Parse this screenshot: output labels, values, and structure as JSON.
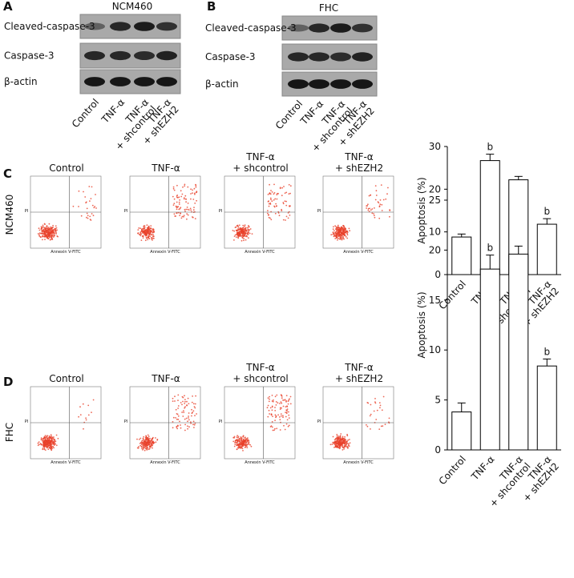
{
  "figure": {
    "blots": [
      {
        "panel": "A",
        "title": "NCM460",
        "bands": [
          "Cleaved-caspase-3",
          "Caspase-3",
          "β-actin"
        ],
        "lanes": [
          [
            "Control"
          ],
          [
            "TNF-α"
          ],
          [
            "TNF-α",
            "+ shcontrol"
          ],
          [
            "TNF-α",
            "+ shEZH2"
          ]
        ]
      },
      {
        "panel": "B",
        "title": "FHC",
        "bands": [
          "Cleaved-caspase-3",
          "Caspase-3",
          "β-actin"
        ],
        "lanes": [
          [
            "Control"
          ],
          [
            "TNF-α"
          ],
          [
            "TNF-α",
            "+ shcontrol"
          ],
          [
            "TNF-α",
            "+ shEZH2"
          ]
        ]
      }
    ],
    "flow": [
      {
        "panel": "C",
        "row_label": "NCM460",
        "plots": [
          [
            "Control"
          ],
          [
            "TNF-α"
          ],
          [
            "TNF-α",
            "+ shcontrol"
          ],
          [
            "TNF-α",
            "+ shEZH2"
          ]
        ]
      },
      {
        "panel": "D",
        "row_label": "FHC",
        "plots": [
          [
            "Control"
          ],
          [
            "TNF-α"
          ],
          [
            "TNF-α",
            "+ shcontrol"
          ],
          [
            "TNF-α",
            "+ shEZH2"
          ]
        ]
      }
    ],
    "flow_x_label": "Annexin V-FITC",
    "flow_y_label": "PI"
  },
  "chart_data": [
    {
      "type": "bar",
      "y_label": "Apoptosis (%)",
      "categories": [
        [
          "Control"
        ],
        [
          "TNF-α"
        ],
        [
          "TNF-α",
          "+ shcontrol"
        ],
        [
          "TNF-α",
          "+ shEZH2"
        ]
      ],
      "values": [
        8.8,
        26.7,
        22.2,
        11.8
      ],
      "errors": [
        0.7,
        1.5,
        0.8,
        1.3
      ],
      "annotations": [
        {
          "index": 1,
          "text": "b"
        },
        {
          "index": 3,
          "text": "b"
        }
      ],
      "ylim": [
        0,
        30
      ],
      "yticks": [
        0,
        10,
        20,
        30
      ],
      "color": "#ffffff"
    },
    {
      "type": "bar",
      "y_label": "Apoptosis (%)",
      "categories": [
        [
          "Control"
        ],
        [
          "TNF-α"
        ],
        [
          "TNF-α",
          "+ shcontrol"
        ],
        [
          "TNF-α",
          "+ shEZH2"
        ]
      ],
      "values": [
        3.8,
        18.1,
        19.6,
        8.4
      ],
      "errors": [
        0.9,
        1.4,
        0.8,
        0.7
      ],
      "annotations": [
        {
          "index": 1,
          "text": "b"
        },
        {
          "index": 3,
          "text": "b"
        }
      ],
      "ylim": [
        0,
        25
      ],
      "yticks": [
        0,
        5,
        10,
        15,
        20,
        25
      ],
      "color": "#ffffff"
    }
  ]
}
